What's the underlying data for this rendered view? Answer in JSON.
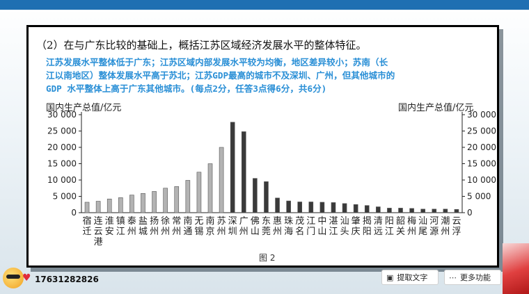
{
  "question": "（2）在与广东比较的基础上，概括江苏区域经济发展水平的整体特征。",
  "answer": [
    "江苏发展水平整体低于广东；江苏区域内部发展水平较为均衡，地区差异较小；苏南（长",
    "江以南地区）整体发展水平高于苏北；江苏GDP最高的城市不及深圳、广州，但其他城市的",
    "GDP 水平整体上高于广东其他城市。(每点2分，任答3点得6分，共6分)"
  ],
  "figure_caption": "图 2",
  "toolbar": {
    "extract_text": "提取文字",
    "more": "更多功能"
  },
  "phone": "17631282826",
  "chart_data": {
    "type": "bar",
    "ylabel_left": "国内生产总值/亿元",
    "ylabel_right": "国内生产总值/亿元",
    "ylim": [
      0,
      30000
    ],
    "yticks": [
      "0",
      "5 000",
      "10 000",
      "15 000",
      "20 000",
      "25 000",
      "30 000"
    ],
    "categories": [
      "宿迁",
      "连云港",
      "淮安",
      "镇江",
      "泰州",
      "盐城",
      "扬州",
      "徐州",
      "常州",
      "南通",
      "无锡",
      "南京",
      "苏州",
      "深圳",
      "广州",
      "佛山",
      "东莞",
      "惠州",
      "珠海",
      "茂名",
      "江门",
      "中山",
      "湛江",
      "汕头",
      "肇庆",
      "揭阳",
      "清远",
      "阳江",
      "韶关",
      "梅州",
      "汕尾",
      "河源",
      "潮州",
      "云浮"
    ],
    "values": [
      3200,
      3500,
      4200,
      4600,
      5400,
      5900,
      6500,
      7500,
      8000,
      9900,
      12400,
      15000,
      20000,
      27700,
      24800,
      10500,
      9500,
      4500,
      3600,
      3300,
      3300,
      3200,
      3100,
      2800,
      2500,
      2200,
      1800,
      1400,
      1400,
      1300,
      1100,
      1100,
      1100,
      1000
    ],
    "colors": {
      "jiangsu": "#b3b3b3",
      "guangdong": "#3a3a3a"
    },
    "jiangsu_count": 13
  }
}
